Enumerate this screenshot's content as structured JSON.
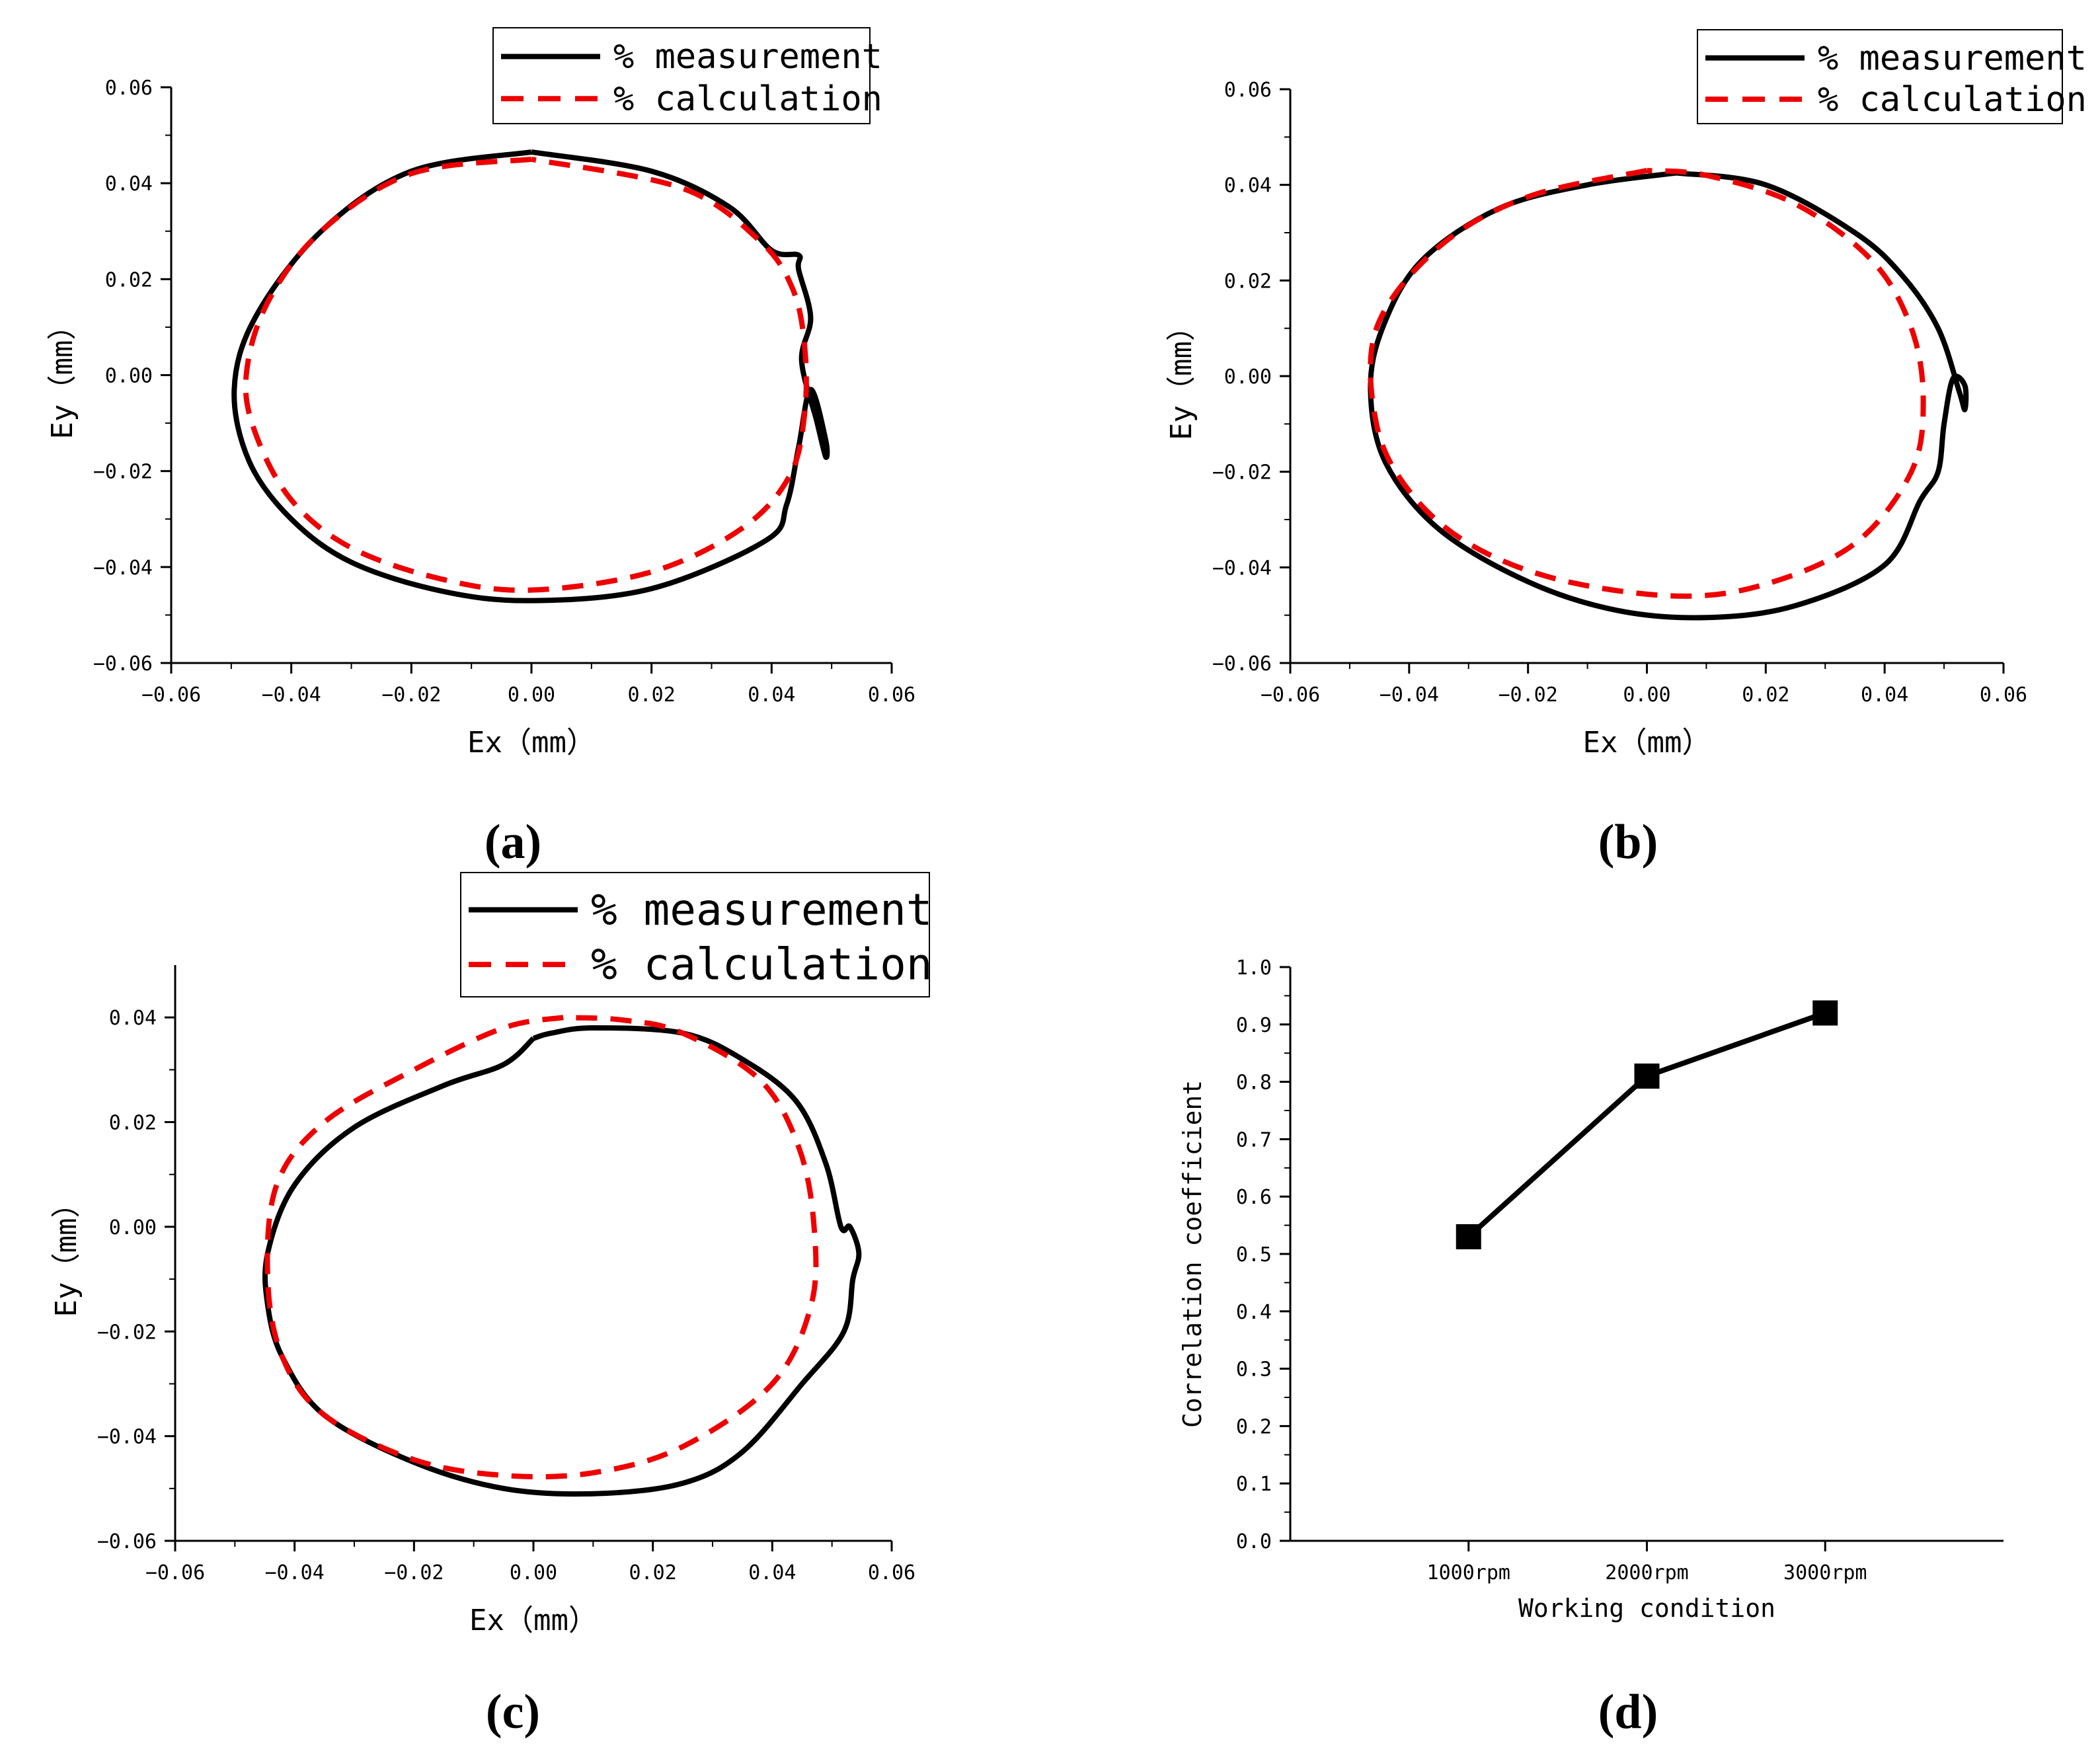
{
  "chart_data": [
    {
      "id": "a",
      "type": "line",
      "panel_label": "a",
      "xlabel": "Ex（mm）",
      "ylabel": "Ey（mm）",
      "xlim": [
        -0.06,
        0.06
      ],
      "ylim": [
        -0.06,
        0.06
      ],
      "xticks": [
        -0.06,
        -0.04,
        -0.02,
        0.0,
        0.02,
        0.04,
        0.06
      ],
      "yticks": [
        -0.06,
        -0.04,
        -0.02,
        0.0,
        0.02,
        0.04,
        0.06
      ],
      "xtick_labels": [
        "−0.06",
        "−0.04",
        "−0.02",
        "0.00",
        "0.02",
        "0.04",
        "0.06"
      ],
      "ytick_labels": [
        "−0.06",
        "−0.04",
        "−0.02",
        "0.00",
        "0.02",
        "0.04",
        "0.06"
      ],
      "legend": {
        "position": "top-right",
        "entries": [
          "% measurement",
          "% calculation"
        ]
      },
      "series": [
        {
          "name": "% measurement",
          "style": "solid",
          "color": "#000000",
          "points": [
            [
              0.0,
              0.0465
            ],
            [
              -0.02,
              0.0425
            ],
            [
              -0.035,
              0.03
            ],
            [
              -0.046,
              0.012
            ],
            [
              -0.0495,
              -0.003
            ],
            [
              -0.047,
              -0.018
            ],
            [
              -0.04,
              -0.03
            ],
            [
              -0.03,
              -0.039
            ],
            [
              -0.015,
              -0.045
            ],
            [
              0.0,
              -0.047
            ],
            [
              0.02,
              -0.0445
            ],
            [
              0.039,
              -0.0345
            ],
            [
              0.0425,
              -0.027
            ],
            [
              0.0445,
              -0.015
            ],
            [
              0.0465,
              -0.003
            ],
            [
              0.049,
              -0.0135
            ],
            [
              0.049,
              -0.017
            ],
            [
              0.0475,
              -0.0095
            ],
            [
              0.045,
              0.003
            ],
            [
              0.0465,
              0.012
            ],
            [
              0.0445,
              0.022
            ],
            [
              0.0445,
              0.025
            ],
            [
              0.04,
              0.026
            ],
            [
              0.033,
              0.035
            ],
            [
              0.02,
              0.0425
            ],
            [
              0.0,
              0.0465
            ]
          ]
        },
        {
          "name": "% calculation",
          "style": "dashed",
          "color": "#ee0000",
          "points": [
            [
              0.0,
              0.045
            ],
            [
              -0.02,
              0.042
            ],
            [
              -0.035,
              0.03
            ],
            [
              -0.044,
              0.015
            ],
            [
              -0.0475,
              0.0
            ],
            [
              -0.046,
              -0.012
            ],
            [
              -0.04,
              -0.026
            ],
            [
              -0.03,
              -0.036
            ],
            [
              -0.015,
              -0.0425
            ],
            [
              0.0,
              -0.0448
            ],
            [
              0.02,
              -0.041
            ],
            [
              0.035,
              -0.032
            ],
            [
              0.043,
              -0.021
            ],
            [
              0.0455,
              -0.008
            ],
            [
              0.0455,
              0.006
            ],
            [
              0.0435,
              0.018
            ],
            [
              0.038,
              0.028
            ],
            [
              0.025,
              0.039
            ],
            [
              0.0,
              0.045
            ]
          ]
        }
      ]
    },
    {
      "id": "b",
      "type": "line",
      "panel_label": "b",
      "xlabel": "Ex（mm）",
      "ylabel": "Ey（mm）",
      "xlim": [
        -0.06,
        0.06
      ],
      "ylim": [
        -0.06,
        0.06
      ],
      "xticks": [
        -0.06,
        -0.04,
        -0.02,
        0.0,
        0.02,
        0.04,
        0.06
      ],
      "yticks": [
        -0.06,
        -0.04,
        -0.02,
        0.0,
        0.02,
        0.04,
        0.06
      ],
      "xtick_labels": [
        "−0.06",
        "−0.04",
        "−0.02",
        "0.00",
        "0.02",
        "0.04",
        "0.06"
      ],
      "ytick_labels": [
        "−0.06",
        "−0.04",
        "−0.02",
        "0.00",
        "0.02",
        "0.04",
        "0.06"
      ],
      "legend": {
        "position": "top-right",
        "entries": [
          "% measurement",
          "% calculation"
        ]
      },
      "series": [
        {
          "name": "% measurement",
          "style": "solid",
          "color": "#000000",
          "points": [
            [
              0.005,
              0.0425
            ],
            [
              -0.01,
              0.04
            ],
            [
              -0.025,
              0.035
            ],
            [
              -0.038,
              0.024
            ],
            [
              -0.0445,
              0.01
            ],
            [
              -0.0465,
              -0.003
            ],
            [
              -0.044,
              -0.018
            ],
            [
              -0.035,
              -0.032
            ],
            [
              -0.02,
              -0.043
            ],
            [
              -0.005,
              -0.049
            ],
            [
              0.01,
              -0.0505
            ],
            [
              0.025,
              -0.048
            ],
            [
              0.04,
              -0.0395
            ],
            [
              0.046,
              -0.026
            ],
            [
              0.049,
              -0.02
            ],
            [
              0.05,
              -0.01
            ],
            [
              0.0515,
              -0.0005
            ],
            [
              0.0535,
              -0.002
            ],
            [
              0.0535,
              -0.007
            ],
            [
              0.0525,
              -0.003
            ],
            [
              0.049,
              0.01
            ],
            [
              0.043,
              0.021
            ],
            [
              0.035,
              0.03
            ],
            [
              0.02,
              0.04
            ],
            [
              0.005,
              0.0425
            ]
          ]
        },
        {
          "name": "% calculation",
          "style": "dashed",
          "color": "#ee0000",
          "points": [
            [
              0.0,
              0.043
            ],
            [
              -0.02,
              0.0375
            ],
            [
              -0.035,
              0.027
            ],
            [
              -0.0455,
              0.01
            ],
            [
              -0.0455,
              -0.01
            ],
            [
              -0.04,
              -0.024
            ],
            [
              -0.03,
              -0.035
            ],
            [
              -0.015,
              -0.0425
            ],
            [
              0.005,
              -0.046
            ],
            [
              0.02,
              -0.0435
            ],
            [
              0.035,
              -0.035
            ],
            [
              0.0445,
              -0.02
            ],
            [
              0.0465,
              -0.005
            ],
            [
              0.0445,
              0.01
            ],
            [
              0.038,
              0.024
            ],
            [
              0.025,
              0.036
            ],
            [
              0.01,
              0.042
            ],
            [
              0.0,
              0.043
            ]
          ]
        }
      ]
    },
    {
      "id": "c",
      "type": "line",
      "panel_label": "c",
      "xlabel": "Ex（mm）",
      "ylabel": "Ey（mm）",
      "xlim": [
        -0.06,
        0.06
      ],
      "ylim": [
        -0.06,
        0.05
      ],
      "xticks": [
        -0.06,
        -0.04,
        -0.02,
        0.0,
        0.02,
        0.04,
        0.06
      ],
      "yticks": [
        -0.06,
        -0.04,
        -0.02,
        0.0,
        0.02,
        0.04
      ],
      "xtick_labels": [
        "−0.06",
        "−0.04",
        "−0.02",
        "0.00",
        "0.02",
        "0.04",
        "0.06"
      ],
      "ytick_labels": [
        "−0.06",
        "−0.04",
        "−0.02",
        "0.00",
        "0.02",
        "0.04"
      ],
      "legend": {
        "position": "top-right",
        "entries": [
          "% measurement",
          "% calculation"
        ]
      },
      "series": [
        {
          "name": "% measurement",
          "style": "solid",
          "color": "#000000",
          "points": [
            [
              0.0,
              0.036
            ],
            [
              -0.005,
              0.031
            ],
            [
              -0.015,
              0.027
            ],
            [
              -0.03,
              0.019
            ],
            [
              -0.04,
              0.008
            ],
            [
              -0.0445,
              -0.005
            ],
            [
              -0.0445,
              -0.015
            ],
            [
              -0.042,
              -0.025
            ],
            [
              -0.035,
              -0.036
            ],
            [
              -0.02,
              -0.045
            ],
            [
              -0.005,
              -0.05
            ],
            [
              0.01,
              -0.051
            ],
            [
              0.025,
              -0.049
            ],
            [
              0.035,
              -0.043
            ],
            [
              0.045,
              -0.03
            ],
            [
              0.052,
              -0.02
            ],
            [
              0.0535,
              -0.01
            ],
            [
              0.0545,
              -0.005
            ],
            [
              0.053,
              0.0
            ],
            [
              0.0515,
              0.0
            ],
            [
              0.049,
              0.012
            ],
            [
              0.044,
              0.024
            ],
            [
              0.035,
              0.032
            ],
            [
              0.025,
              0.037
            ],
            [
              0.01,
              0.038
            ],
            [
              0.003,
              0.037
            ],
            [
              0.0,
              0.036
            ]
          ]
        },
        {
          "name": "% calculation",
          "style": "dashed",
          "color": "#ee0000",
          "points": [
            [
              0.005,
              0.04
            ],
            [
              -0.005,
              0.038
            ],
            [
              -0.02,
              0.03
            ],
            [
              -0.035,
              0.02
            ],
            [
              -0.043,
              0.008
            ],
            [
              -0.0445,
              -0.01
            ],
            [
              -0.042,
              -0.025
            ],
            [
              -0.035,
              -0.036
            ],
            [
              -0.02,
              -0.0445
            ],
            [
              -0.005,
              -0.0475
            ],
            [
              0.01,
              -0.047
            ],
            [
              0.025,
              -0.042
            ],
            [
              0.04,
              -0.03
            ],
            [
              0.0465,
              -0.015
            ],
            [
              0.047,
              0.0
            ],
            [
              0.0445,
              0.015
            ],
            [
              0.038,
              0.028
            ],
            [
              0.025,
              0.037
            ],
            [
              0.015,
              0.0395
            ],
            [
              0.005,
              0.04
            ]
          ]
        }
      ]
    },
    {
      "id": "d",
      "type": "line",
      "panel_label": "d",
      "xlabel": "Working condition",
      "ylabel": "Correlation coefficient",
      "categories": [
        "1000rpm",
        "2000rpm",
        "3000rpm"
      ],
      "ylim": [
        0.0,
        1.0
      ],
      "yticks": [
        0.0,
        0.1,
        0.2,
        0.3,
        0.4,
        0.5,
        0.6,
        0.7,
        0.8,
        0.9,
        1.0
      ],
      "ytick_labels": [
        "0.0",
        "0.1",
        "0.2",
        "0.3",
        "0.4",
        "0.5",
        "0.6",
        "0.7",
        "0.8",
        "0.9",
        "1.0"
      ],
      "series": [
        {
          "name": "Correlation coefficient",
          "marker": "square",
          "color": "#000000",
          "values": [
            0.53,
            0.81,
            0.92
          ]
        }
      ]
    }
  ]
}
